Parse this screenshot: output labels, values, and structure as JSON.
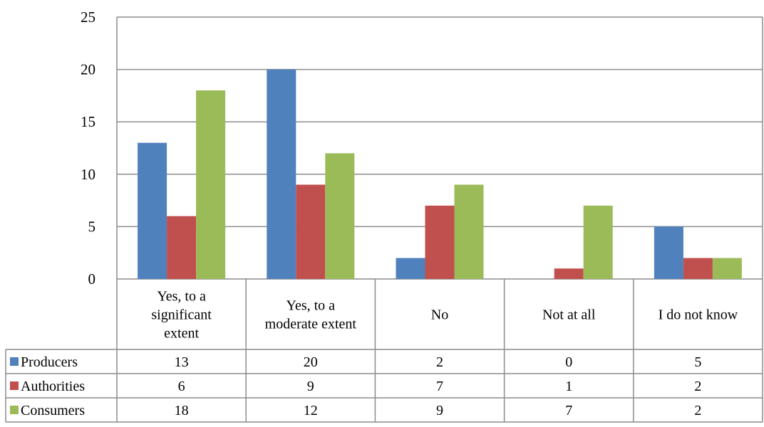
{
  "chart_data": {
    "type": "bar",
    "title": "",
    "xlabel": "",
    "ylabel": "",
    "ylim": [
      0,
      25
    ],
    "y_ticks": [
      "0",
      "5",
      "10",
      "15",
      "20",
      "25"
    ],
    "grid": true,
    "legend": "data-table",
    "categories": [
      [
        "Yes, to a",
        "significant",
        "extent"
      ],
      [
        "Yes, to a",
        "moderate extent"
      ],
      [
        "No"
      ],
      [
        "Not at all"
      ],
      [
        "I do not know"
      ]
    ],
    "series": [
      {
        "name": "Producers",
        "color": "#4F81BD",
        "values": [
          13,
          20,
          2,
          0,
          5
        ]
      },
      {
        "name": "Authorities",
        "color": "#C0504D",
        "values": [
          6,
          9,
          7,
          1,
          2
        ]
      },
      {
        "name": "Consumers",
        "color": "#9BBB59",
        "values": [
          18,
          12,
          9,
          7,
          2
        ]
      }
    ]
  }
}
